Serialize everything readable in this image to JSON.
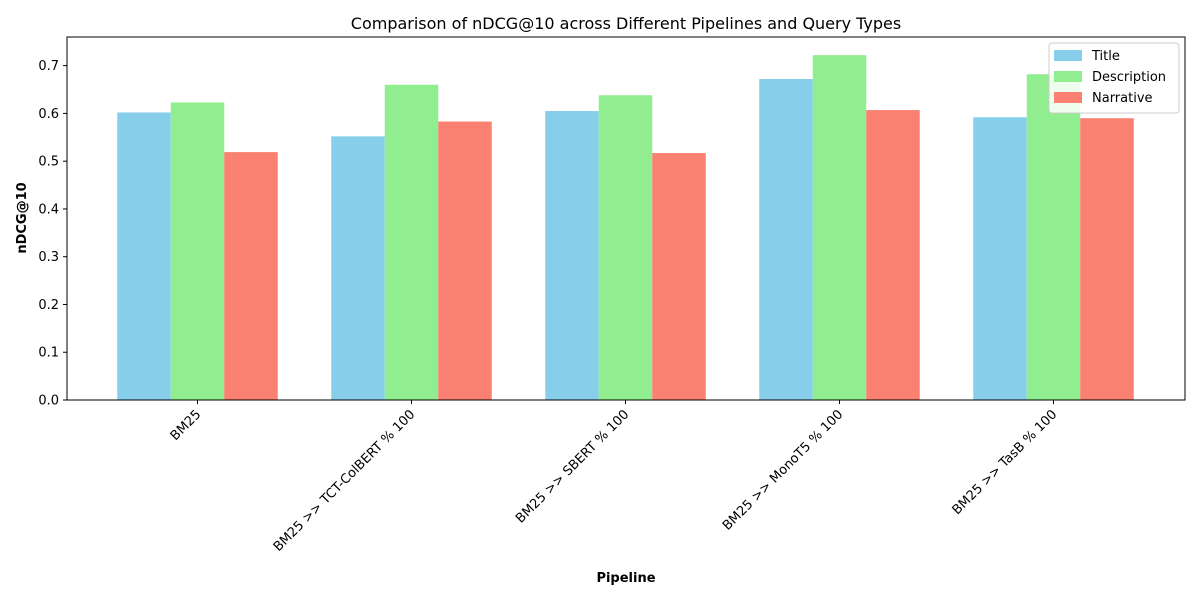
{
  "chart_data": {
    "type": "bar",
    "title": "Comparison of nDCG@10 across Different Pipelines and Query Types",
    "xlabel": "Pipeline",
    "ylabel": "nDCG@10",
    "categories": [
      "BM25",
      "BM25 >> TCT-ColBERT % 100",
      "BM25 >> SBERT % 100",
      "BM25 >> MonoT5 % 100",
      "BM25 >> TasB % 100"
    ],
    "series": [
      {
        "name": "Title",
        "color": "#87CEEB",
        "values": [
          0.602,
          0.552,
          0.605,
          0.672,
          0.592
        ]
      },
      {
        "name": "Description",
        "color": "#90EE90",
        "values": [
          0.623,
          0.66,
          0.638,
          0.722,
          0.682
        ]
      },
      {
        "name": "Narrative",
        "color": "#FA8072",
        "values": [
          0.519,
          0.583,
          0.517,
          0.607,
          0.59
        ]
      }
    ],
    "ylim": [
      0,
      0.76
    ],
    "yticks": [
      0.0,
      0.1,
      0.2,
      0.3,
      0.4,
      0.5,
      0.6,
      0.7
    ],
    "ytick_labels": [
      "0.0",
      "0.1",
      "0.2",
      "0.3",
      "0.4",
      "0.5",
      "0.6",
      "0.7"
    ],
    "grid": false,
    "legend_position": "top-right"
  }
}
